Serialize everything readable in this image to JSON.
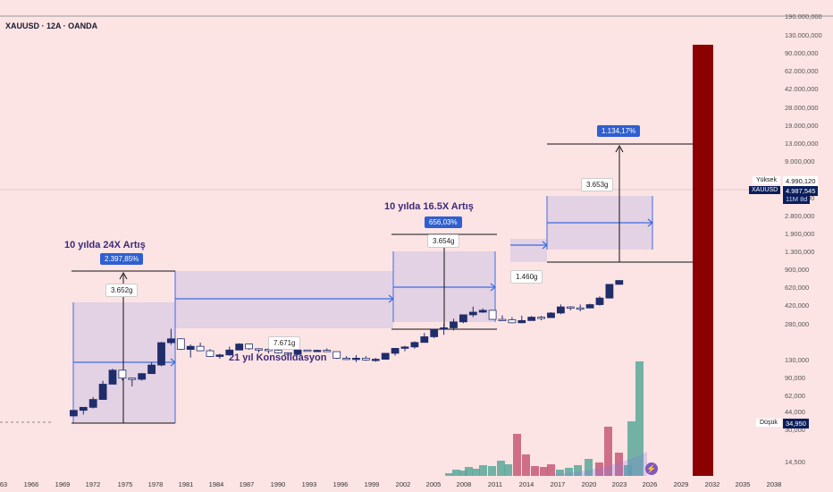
{
  "header": {
    "title": "XAUUSD · 12A · OANDA"
  },
  "annotations": [
    {
      "id": "a1",
      "title": "10 yılda 24X Artış",
      "pct": "2.397,85%",
      "dur": "3.652g"
    },
    {
      "id": "a2",
      "title": "10 yılda 16.5X Artış",
      "pct": "656,03%",
      "dur": "3.654g"
    },
    {
      "id": "a3",
      "pct": "1.134,17%",
      "dur": "3.653g"
    },
    {
      "id": "a4",
      "title": "21 yıl Konsolidasyon",
      "dur": "7.671g"
    },
    {
      "id": "a5",
      "dur": "1.460g"
    }
  ],
  "price_labels": {
    "high_label": "Yüksek",
    "high_value": "4.990,120",
    "symbol": "XAUUSD",
    "last_value": "4.987,545",
    "timer": "11M 8d",
    "low_label": "Düşük",
    "low_value": "34,950"
  },
  "chart_data": {
    "type": "candlestick",
    "symbol": "XAUUSD",
    "interval": "12A",
    "source": "OANDA",
    "y_scale": "log",
    "y_ticks": [
      "190.000,000",
      "130.000,000",
      "90.000,000",
      "62.000,000",
      "42.000,000",
      "28.000,000",
      "19.000,000",
      "13.000,000",
      "9.000,000",
      "4.200,000",
      "2.800,000",
      "1.900,000",
      "1.300,000",
      "900,000",
      "620,000",
      "420,000",
      "280,000",
      "130,000",
      "90,000",
      "62,000",
      "44,000",
      "30,000",
      "14,500"
    ],
    "x_ticks": [
      "63",
      "1966",
      "1969",
      "1972",
      "1975",
      "1978",
      "1981",
      "1984",
      "1987",
      "1990",
      "1993",
      "1996",
      "1999",
      "2002",
      "2005",
      "2008",
      "2011",
      "2014",
      "2017",
      "2020",
      "2023",
      "2026",
      "2029",
      "2032",
      "2035",
      "2038"
    ],
    "candles": [
      {
        "year": 1970,
        "o": 35,
        "h": 43,
        "l": 34.95,
        "c": 43
      },
      {
        "year": 1971,
        "o": 43,
        "h": 48,
        "l": 37,
        "c": 48
      },
      {
        "year": 1972,
        "o": 48,
        "h": 70,
        "l": 46,
        "c": 64
      },
      {
        "year": 1973,
        "o": 64,
        "h": 127,
        "l": 64,
        "c": 112
      },
      {
        "year": 1974,
        "o": 112,
        "h": 198,
        "l": 112,
        "c": 187
      },
      {
        "year": 1975,
        "o": 187,
        "h": 188,
        "l": 128,
        "c": 140
      },
      {
        "year": 1976,
        "o": 140,
        "h": 141,
        "l": 103,
        "c": 134
      },
      {
        "year": 1977,
        "o": 134,
        "h": 168,
        "l": 128,
        "c": 165
      },
      {
        "year": 1978,
        "o": 165,
        "h": 250,
        "l": 165,
        "c": 226
      },
      {
        "year": 1979,
        "o": 226,
        "h": 525,
        "l": 216,
        "c": 512
      },
      {
        "year": 1980,
        "o": 512,
        "h": 850,
        "l": 474,
        "c": 590
      },
      {
        "year": 1981,
        "o": 590,
        "h": 600,
        "l": 390,
        "c": 400
      },
      {
        "year": 1982,
        "o": 400,
        "h": 480,
        "l": 297,
        "c": 448
      },
      {
        "year": 1983,
        "o": 448,
        "h": 512,
        "l": 375,
        "c": 381
      },
      {
        "year": 1984,
        "o": 381,
        "h": 405,
        "l": 303,
        "c": 309
      },
      {
        "year": 1985,
        "o": 309,
        "h": 340,
        "l": 284,
        "c": 327
      },
      {
        "year": 1986,
        "o": 327,
        "h": 442,
        "l": 326,
        "c": 391
      },
      {
        "year": 1987,
        "o": 391,
        "h": 502,
        "l": 390,
        "c": 487
      },
      {
        "year": 1988,
        "o": 487,
        "h": 486,
        "l": 395,
        "c": 410
      },
      {
        "year": 1989,
        "o": 410,
        "h": 418,
        "l": 356,
        "c": 401
      },
      {
        "year": 1990,
        "o": 401,
        "h": 425,
        "l": 345,
        "c": 386
      },
      {
        "year": 1991,
        "o": 386,
        "h": 403,
        "l": 344,
        "c": 353
      },
      {
        "year": 1992,
        "o": 353,
        "h": 360,
        "l": 330,
        "c": 333
      },
      {
        "year": 1993,
        "o": 333,
        "h": 407,
        "l": 326,
        "c": 391
      },
      {
        "year": 1994,
        "o": 391,
        "h": 397,
        "l": 370,
        "c": 383
      },
      {
        "year": 1995,
        "o": 383,
        "h": 396,
        "l": 372,
        "c": 387
      },
      {
        "year": 1996,
        "o": 387,
        "h": 415,
        "l": 367,
        "c": 369
      },
      {
        "year": 1997,
        "o": 369,
        "h": 367,
        "l": 283,
        "c": 290
      },
      {
        "year": 1998,
        "o": 290,
        "h": 313,
        "l": 273,
        "c": 288
      },
      {
        "year": 1999,
        "o": 288,
        "h": 325,
        "l": 252,
        "c": 290
      },
      {
        "year": 2000,
        "o": 290,
        "h": 313,
        "l": 264,
        "c": 272
      },
      {
        "year": 2001,
        "o": 272,
        "h": 293,
        "l": 255,
        "c": 279
      },
      {
        "year": 2002,
        "o": 279,
        "h": 349,
        "l": 277,
        "c": 347
      },
      {
        "year": 2003,
        "o": 347,
        "h": 416,
        "l": 319,
        "c": 416
      },
      {
        "year": 2004,
        "o": 416,
        "h": 456,
        "l": 374,
        "c": 438
      },
      {
        "year": 2005,
        "o": 438,
        "h": 537,
        "l": 411,
        "c": 517
      },
      {
        "year": 2006,
        "o": 517,
        "h": 730,
        "l": 516,
        "c": 636
      },
      {
        "year": 2007,
        "o": 636,
        "h": 841,
        "l": 603,
        "c": 834
      },
      {
        "year": 2008,
        "o": 834,
        "h": 1033,
        "l": 681,
        "c": 882
      },
      {
        "year": 2009,
        "o": 882,
        "h": 1226,
        "l": 801,
        "c": 1096
      },
      {
        "year": 2010,
        "o": 1096,
        "h": 1431,
        "l": 1044,
        "c": 1421
      },
      {
        "year": 2011,
        "o": 1421,
        "h": 1921,
        "l": 1308,
        "c": 1565
      },
      {
        "year": 2012,
        "o": 1565,
        "h": 1796,
        "l": 1527,
        "c": 1675
      },
      {
        "year": 2013,
        "o": 1675,
        "h": 1696,
        "l": 1180,
        "c": 1202
      },
      {
        "year": 2014,
        "o": 1202,
        "h": 1392,
        "l": 1142,
        "c": 1184
      },
      {
        "year": 2015,
        "o": 1184,
        "h": 1307,
        "l": 1046,
        "c": 1061
      },
      {
        "year": 2016,
        "o": 1061,
        "h": 1375,
        "l": 1046,
        "c": 1151
      },
      {
        "year": 2017,
        "o": 1151,
        "h": 1358,
        "l": 1146,
        "c": 1303
      },
      {
        "year": 2018,
        "o": 1303,
        "h": 1366,
        "l": 1160,
        "c": 1282
      },
      {
        "year": 2019,
        "o": 1282,
        "h": 1557,
        "l": 1266,
        "c": 1517
      },
      {
        "year": 2020,
        "o": 1517,
        "h": 2075,
        "l": 1451,
        "c": 1898
      },
      {
        "year": 2021,
        "o": 1898,
        "h": 1959,
        "l": 1676,
        "c": 1829
      },
      {
        "year": 2022,
        "o": 1829,
        "h": 2070,
        "l": 1614,
        "c": 1824
      },
      {
        "year": 2023,
        "o": 1824,
        "h": 2135,
        "l": 1804,
        "c": 2063
      },
      {
        "year": 2024,
        "o": 2063,
        "h": 2790,
        "l": 1984,
        "c": 2625
      },
      {
        "year": 2025,
        "o": 2625,
        "h": 4380,
        "l": 2585,
        "c": 4330
      },
      {
        "year": 2026,
        "o": 4330,
        "h": 4990.12,
        "l": 4280,
        "c": 4987.545
      }
    ]
  }
}
